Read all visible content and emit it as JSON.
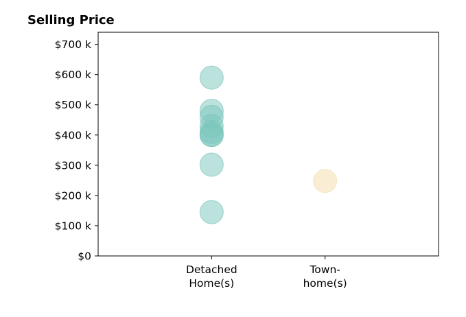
{
  "chart_data": {
    "type": "scatter",
    "title": "Selling Price",
    "xlabel": "",
    "ylabel": "",
    "categories": [
      [
        "Detached",
        "Home(s)"
      ],
      [
        "Town-",
        "home(s)"
      ]
    ],
    "y_ticks": [
      0,
      100000,
      200000,
      300000,
      400000,
      500000,
      600000,
      700000
    ],
    "y_tick_labels": [
      "$0",
      "$100 k",
      "$200 k",
      "$300 k",
      "$400 k",
      "$500 k",
      "$600 k",
      "$700 k"
    ],
    "ylim": [
      0,
      740000
    ],
    "xlim": [
      -1,
      2
    ],
    "grid": false,
    "legend": "none",
    "series": [
      {
        "category_index": 0,
        "color": "#79c5bb",
        "opacity": 0.5,
        "values": [
          590000,
          480000,
          460000,
          430000,
          410000,
          400000,
          400000,
          302000,
          145000
        ]
      },
      {
        "category_index": 1,
        "color": "#f5e2b8",
        "opacity": 0.6,
        "values": [
          248000
        ]
      }
    ]
  }
}
